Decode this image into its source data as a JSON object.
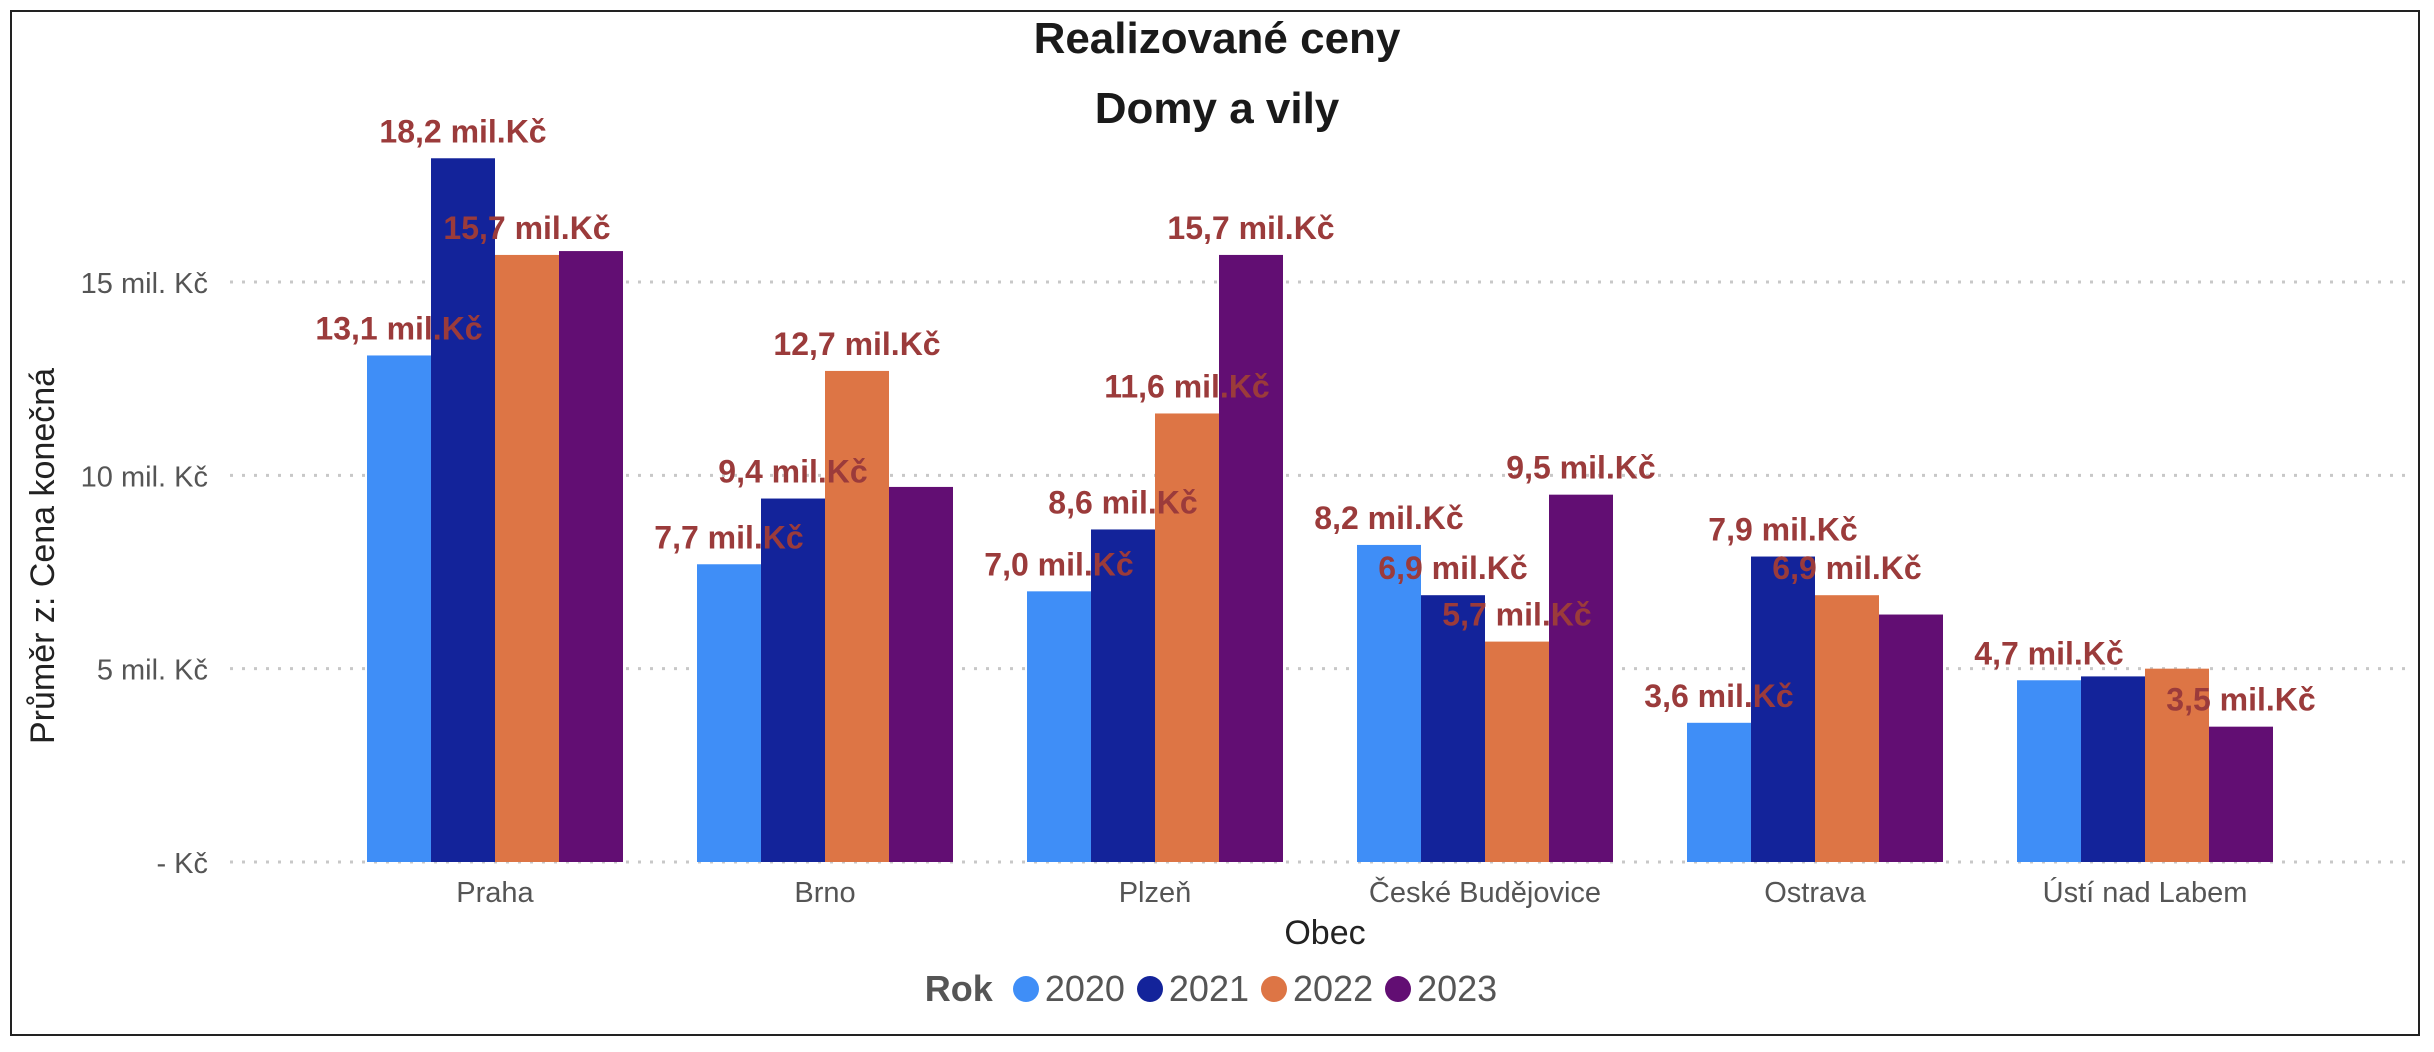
{
  "chart_data": {
    "type": "bar",
    "title": "Realizované ceny",
    "subtitle": "Domy a vily",
    "xlabel": "Obec",
    "ylabel": "Průměr z: Cena konečná",
    "categories": [
      "Praha",
      "Brno",
      "Plzeň",
      "České Budějovice",
      "Ostrava",
      "Ústí nad Labem"
    ],
    "y_ticks": [
      {
        "value": 0,
        "label": "- Kč"
      },
      {
        "value": 5,
        "label": "5 mil. Kč"
      },
      {
        "value": 10,
        "label": "10 mil. Kč"
      },
      {
        "value": 15,
        "label": "15 mil. Kč"
      }
    ],
    "ylim": [
      0,
      19
    ],
    "y_unit": "mil. Kč",
    "grid": true,
    "legend_title": "Rok",
    "legend_position": "bottom",
    "series": [
      {
        "name": "2020",
        "color": "#3f8ef7",
        "values": [
          13.1,
          7.7,
          7.0,
          8.2,
          3.6,
          4.7
        ],
        "labels": [
          "13,1 mil.Kč",
          "7,7 mil.Kč",
          "7,0 mil.Kč",
          "8,2 mil.Kč",
          "3,6 mil.Kč",
          "4,7 mil.Kč"
        ]
      },
      {
        "name": "2021",
        "color": "#13239a",
        "values": [
          18.2,
          9.4,
          8.6,
          6.9,
          7.9,
          4.8
        ],
        "labels": [
          "18,2 mil.Kč",
          "9,4 mil.Kč",
          "8,6 mil.Kč",
          "6,9 mil.Kč",
          "7,9 mil.Kč",
          null
        ]
      },
      {
        "name": "2022",
        "color": "#dd7545",
        "values": [
          15.7,
          12.7,
          11.6,
          5.7,
          6.9,
          5.0
        ],
        "labels": [
          "15,7 mil.Kč",
          "12,7 mil.Kč",
          "11,6 mil.Kč",
          "5,7 mil.Kč",
          "6,9 mil.Kč",
          null
        ]
      },
      {
        "name": "2023",
        "color": "#620e73",
        "values": [
          15.8,
          9.7,
          15.7,
          9.5,
          6.4,
          3.5
        ],
        "labels": [
          null,
          null,
          "15,7 mil.Kč",
          "9,5 mil.Kč",
          null,
          "3,5 mil.Kč"
        ]
      }
    ],
    "label_color": "#9b3b3b"
  }
}
